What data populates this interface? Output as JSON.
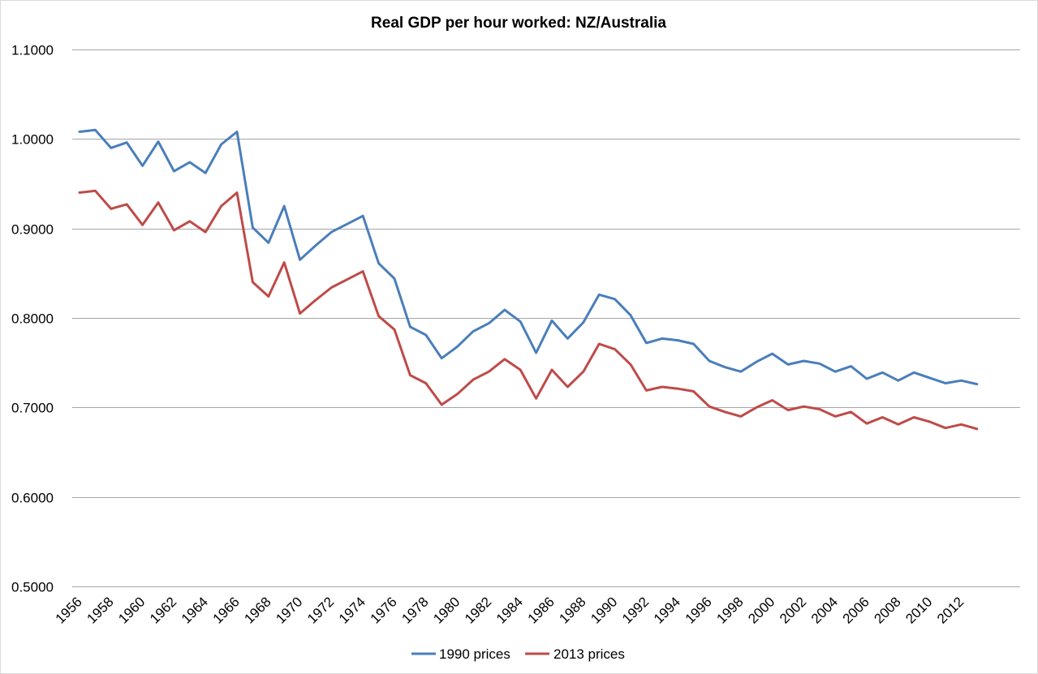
{
  "chart_data": {
    "type": "line",
    "title": "Real GDP per hour worked: NZ/Australia",
    "xlabel": "",
    "ylabel": "",
    "ylim": [
      0.5,
      1.1
    ],
    "y_ticks": [
      0.5,
      0.6,
      0.7,
      0.8,
      0.9,
      1.0,
      1.1
    ],
    "y_tick_labels": [
      "0.5000",
      "0.6000",
      "0.7000",
      "0.8000",
      "0.9000",
      "1.0000",
      "1.1000"
    ],
    "x": [
      1956,
      1957,
      1958,
      1959,
      1960,
      1961,
      1962,
      1963,
      1964,
      1965,
      1966,
      1967,
      1968,
      1969,
      1970,
      1971,
      1972,
      1973,
      1974,
      1975,
      1976,
      1977,
      1978,
      1979,
      1980,
      1981,
      1982,
      1983,
      1984,
      1985,
      1986,
      1987,
      1988,
      1989,
      1990,
      1991,
      1992,
      1993,
      1994,
      1995,
      1996,
      1997,
      1998,
      1999,
      2000,
      2001,
      2002,
      2003,
      2004,
      2005,
      2006,
      2007,
      2008,
      2009,
      2010,
      2011,
      2012,
      2013
    ],
    "x_tick_labels": [
      "1956",
      "1958",
      "1960",
      "1962",
      "1964",
      "1966",
      "1968",
      "1970",
      "1972",
      "1974",
      "1976",
      "1978",
      "1980",
      "1982",
      "1984",
      "1986",
      "1988",
      "1990",
      "1992",
      "1994",
      "1996",
      "1998",
      "2000",
      "2002",
      "2004",
      "2006",
      "2008",
      "2010",
      "2012"
    ],
    "legend_position": "bottom",
    "grid": true,
    "series": [
      {
        "name": "1990 prices",
        "color": "#4a7ebb",
        "values": [
          1.008,
          1.01,
          0.99,
          0.996,
          0.97,
          0.997,
          0.964,
          0.974,
          0.962,
          0.994,
          1.008,
          0.901,
          0.884,
          0.925,
          0.865,
          0.881,
          0.896,
          0.905,
          0.914,
          0.861,
          0.844,
          0.79,
          0.781,
          0.755,
          0.768,
          0.785,
          0.794,
          0.809,
          0.796,
          0.761,
          0.797,
          0.777,
          0.795,
          0.826,
          0.821,
          0.803,
          0.772,
          0.777,
          0.775,
          0.771,
          0.752,
          0.745,
          0.74,
          0.751,
          0.76,
          0.748,
          0.752,
          0.749,
          0.74,
          0.746,
          0.732,
          0.739,
          0.73,
          0.739,
          0.733,
          0.727,
          0.73,
          0.726
        ]
      },
      {
        "name": "2013 prices",
        "color": "#be4b48",
        "values": [
          0.94,
          0.942,
          0.922,
          0.927,
          0.904,
          0.929,
          0.898,
          0.908,
          0.896,
          0.925,
          0.94,
          0.84,
          0.824,
          0.862,
          0.805,
          0.82,
          0.834,
          0.843,
          0.852,
          0.802,
          0.787,
          0.736,
          0.727,
          0.703,
          0.715,
          0.731,
          0.74,
          0.754,
          0.742,
          0.71,
          0.742,
          0.723,
          0.74,
          0.771,
          0.765,
          0.748,
          0.719,
          0.723,
          0.721,
          0.718,
          0.701,
          0.695,
          0.69,
          0.7,
          0.708,
          0.697,
          0.701,
          0.698,
          0.69,
          0.695,
          0.682,
          0.689,
          0.681,
          0.689,
          0.684,
          0.677,
          0.681,
          0.676
        ]
      }
    ]
  }
}
